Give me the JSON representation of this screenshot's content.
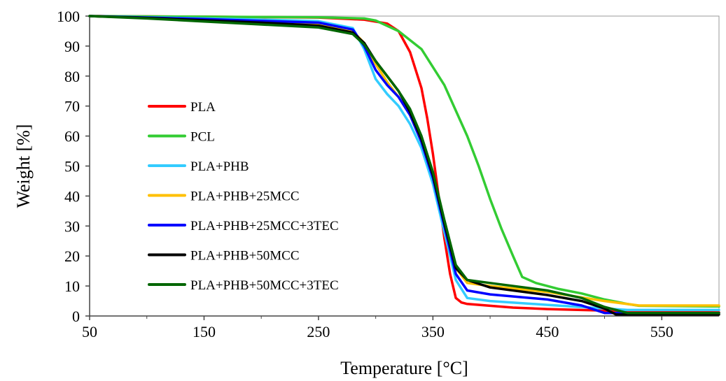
{
  "chart_data": {
    "type": "line",
    "title": "",
    "xlabel": "Temperature [°C]",
    "ylabel": "Weight [%]",
    "xlim": [
      50,
      600
    ],
    "ylim": [
      0,
      100
    ],
    "xticks": [
      50,
      150,
      250,
      350,
      450,
      550
    ],
    "yticks": [
      0,
      10,
      20,
      30,
      40,
      50,
      60,
      70,
      80,
      90,
      100
    ],
    "grid": false,
    "legend_position": "left",
    "series": [
      {
        "name": "PLA",
        "color": "#ff0000",
        "x": [
          50,
          150,
          250,
          290,
          310,
          320,
          330,
          340,
          345,
          350,
          355,
          360,
          365,
          370,
          375,
          380,
          400,
          420,
          450,
          500,
          550,
          600
        ],
        "y": [
          100,
          99.8,
          99.5,
          98.8,
          97.5,
          95,
          88,
          76,
          66,
          54,
          40,
          26,
          14,
          6,
          4.5,
          4,
          3.4,
          2.8,
          2.3,
          1.8,
          1.4,
          1.2
        ]
      },
      {
        "name": "PCL",
        "color": "#33cc33",
        "x": [
          50,
          150,
          250,
          290,
          300,
          320,
          340,
          360,
          380,
          390,
          400,
          410,
          420,
          428,
          440,
          460,
          480,
          500,
          520,
          530,
          600
        ],
        "y": [
          100,
          99.8,
          99.6,
          99.2,
          98.5,
          95,
          89,
          77,
          60,
          50,
          39,
          29,
          20,
          13,
          11,
          9,
          7.5,
          5.5,
          4,
          3.4,
          3.2
        ]
      },
      {
        "name": "PLA+PHB",
        "color": "#33ccff",
        "x": [
          50,
          100,
          150,
          200,
          250,
          280,
          290,
          300,
          310,
          320,
          330,
          340,
          350,
          360,
          370,
          380,
          400,
          450,
          500,
          520,
          600
        ],
        "y": [
          100,
          99.6,
          99.2,
          98.8,
          98.3,
          96,
          89,
          79,
          74,
          70,
          64,
          56,
          44,
          28,
          12,
          6,
          5,
          3.7,
          2.5,
          2,
          2
        ]
      },
      {
        "name": "PLA+PHB+25MCC",
        "color": "#ffc000",
        "x": [
          50,
          100,
          150,
          200,
          250,
          280,
          290,
          300,
          310,
          320,
          330,
          340,
          350,
          360,
          370,
          380,
          400,
          450,
          500,
          530,
          600
        ],
        "y": [
          100,
          99.4,
          98.8,
          98.2,
          97.2,
          95,
          91,
          84,
          78,
          73,
          67,
          59,
          47,
          31,
          16,
          11,
          10,
          8,
          5,
          3.5,
          3.5
        ]
      },
      {
        "name": "PLA+PHB+25MCC+3TEC",
        "color": "#0000ff",
        "x": [
          50,
          100,
          150,
          200,
          250,
          280,
          290,
          300,
          310,
          320,
          330,
          340,
          350,
          360,
          370,
          380,
          400,
          450,
          480,
          500,
          600
        ],
        "y": [
          100,
          99.5,
          99,
          98.4,
          97.8,
          95.5,
          90,
          82,
          77,
          73,
          67,
          58,
          46,
          30,
          14,
          8.5,
          7.2,
          5.5,
          3.5,
          1,
          1
        ]
      },
      {
        "name": "PLA+PHB+50MCC",
        "color": "#000000",
        "x": [
          50,
          100,
          150,
          200,
          250,
          280,
          290,
          300,
          310,
          320,
          330,
          340,
          350,
          360,
          370,
          380,
          400,
          450,
          480,
          500,
          510,
          600
        ],
        "y": [
          100,
          99.4,
          98.6,
          97.8,
          96.8,
          94.5,
          91,
          85,
          80,
          75,
          68,
          59,
          47,
          31,
          16,
          12,
          9.5,
          7,
          5,
          2.5,
          0.5,
          0.5
        ]
      },
      {
        "name": "PLA+PHB+50MCC+3TEC",
        "color": "#006600",
        "x": [
          50,
          100,
          150,
          200,
          250,
          280,
          290,
          300,
          310,
          320,
          330,
          340,
          350,
          360,
          370,
          380,
          400,
          450,
          480,
          500,
          520,
          600
        ],
        "y": [
          100,
          99.2,
          98.2,
          97.2,
          96.2,
          94,
          90.5,
          85,
          80,
          75,
          69,
          60,
          48,
          32,
          17,
          12,
          11,
          8.5,
          6,
          3,
          1,
          1
        ]
      }
    ]
  }
}
